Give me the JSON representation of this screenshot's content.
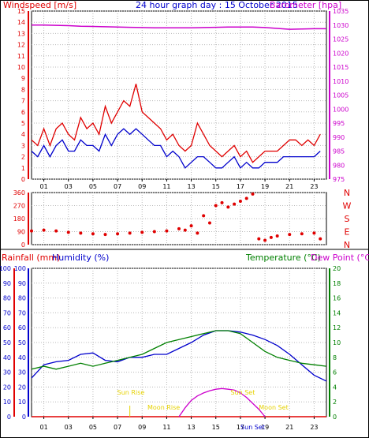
{
  "header": {
    "wind_title": "Windspeed [m/s]",
    "date_title": "24 hour graph day : 15 October 2015",
    "baro_title": "Barometer [hpa]"
  },
  "lower_header": {
    "rain_title": "Rainfall (mm)",
    "hum_title": "Humidity (%)",
    "temp_title": "Temperature (°C)",
    "dew_title": "Dew Point (°C)"
  },
  "colors": {
    "wind_gust": "#e00000",
    "wind_avg": "#0000cc",
    "barometer": "#cc00cc",
    "humidity": "#0000cc",
    "temperature": "#008000",
    "sun": "#e6d200",
    "moon": "#cc00cc",
    "grid": "#b8b8b8",
    "plot_bg": "#ffffff",
    "frame": "#000000"
  },
  "chart_data": [
    {
      "type": "line",
      "series": [
        {
          "values": [
            3.5,
            3,
            4.5,
            3,
            4.5,
            5,
            4,
            3.5,
            5.5,
            4.5,
            5,
            4,
            6.5,
            5,
            6,
            7,
            6.5,
            8.5,
            6,
            5.5,
            5,
            4.5,
            3.5,
            4,
            3,
            2.5,
            3,
            5,
            4,
            3,
            2.5,
            2,
            2.5,
            3,
            2,
            2.5,
            1.5,
            2,
            2.5,
            2.5,
            2.5,
            3,
            3.5,
            3.5,
            3,
            3.5,
            3,
            4
          ]
        },
        {
          "values": [
            2.5,
            2,
            3,
            2,
            3,
            3.5,
            2.5,
            2.5,
            3.5,
            3,
            3,
            2.5,
            4,
            3,
            4,
            4.5,
            4,
            4.5,
            4,
            3.5,
            3,
            3,
            2,
            2.5,
            2,
            1,
            1.5,
            2,
            2,
            1.5,
            1,
            1,
            1.5,
            2,
            1,
            1.5,
            1,
            1,
            1.5,
            1.5,
            1.5,
            2,
            2,
            2,
            2,
            2,
            2,
            2.5
          ]
        }
      ],
      "x": [
        0,
        0.5,
        1,
        1.5,
        2,
        2.5,
        3,
        3.5,
        4,
        4.5,
        5,
        5.5,
        6,
        6.5,
        7,
        7.5,
        8,
        8.5,
        9,
        9.5,
        10,
        10.5,
        11,
        11.5,
        12,
        12.5,
        13,
        13.5,
        14,
        14.5,
        15,
        15.5,
        16,
        16.5,
        17,
        17.5,
        18,
        18.5,
        19,
        19.5,
        20,
        20.5,
        21,
        21.5,
        22,
        22.5,
        23,
        23.5
      ],
      "ylim": [
        0,
        15
      ],
      "y_ticks": [
        0,
        1,
        2,
        3,
        4,
        5,
        6,
        7,
        8,
        9,
        10,
        11,
        12,
        13,
        14,
        15
      ]
    },
    {
      "type": "line",
      "series": [
        {
          "values": [
            1030,
            1030,
            1029.9,
            1029.8,
            1029.6,
            1029.5,
            1029.4,
            1029.3,
            1029.2,
            1029.1,
            1029,
            1029,
            1029,
            1029,
            1029.1,
            1029.2,
            1029.3,
            1029.3,
            1029.3,
            1029.1,
            1028.8,
            1028.5,
            1028.6,
            1028.7,
            1028.7
          ]
        }
      ],
      "x": [
        0,
        1,
        2,
        3,
        4,
        5,
        6,
        7,
        8,
        9,
        10,
        11,
        12,
        13,
        14,
        15,
        16,
        17,
        18,
        19,
        20,
        21,
        22,
        23,
        24
      ],
      "ylim": [
        975,
        1035
      ],
      "y_ticks": [
        975,
        980,
        985,
        990,
        995,
        1000,
        1005,
        1010,
        1015,
        1020,
        1025,
        1030,
        1035
      ]
    },
    {
      "type": "scatter",
      "categories_y": [
        "N",
        "E",
        "S",
        "W",
        "N"
      ],
      "x": [
        0,
        1,
        2,
        3,
        4,
        5,
        6,
        7,
        8,
        9,
        10,
        11,
        12,
        12.5,
        13,
        13.5,
        14,
        14.5,
        15,
        15.5,
        16,
        16.5,
        17,
        17.5,
        18,
        18.5,
        19,
        19.5,
        20,
        21,
        22,
        23,
        23.5
      ],
      "values": [
        95,
        100,
        95,
        85,
        80,
        75,
        70,
        75,
        80,
        85,
        90,
        95,
        110,
        100,
        130,
        80,
        200,
        150,
        270,
        290,
        260,
        280,
        300,
        320,
        350,
        40,
        30,
        50,
        60,
        70,
        75,
        80,
        40
      ],
      "ylim": [
        0,
        360
      ],
      "y_ticks": [
        0,
        90,
        180,
        270,
        360
      ]
    },
    {
      "type": "line",
      "x_ticks": [
        "01",
        "03",
        "05",
        "07",
        "09",
        "11",
        "13",
        "15",
        "17",
        "19",
        "21",
        "23"
      ],
      "series": [
        {
          "values": [
            26,
            35,
            37,
            38,
            42,
            43,
            38,
            37,
            40,
            40,
            42,
            42,
            46,
            50,
            55,
            58,
            58,
            57,
            55,
            52,
            48,
            42,
            35,
            28,
            24
          ]
        },
        {
          "values": [
            32,
            34,
            32,
            34,
            36,
            34,
            36,
            38,
            40,
            42,
            46,
            50,
            52,
            54,
            56,
            58,
            58,
            56,
            50,
            44,
            40,
            38,
            36,
            35,
            34
          ]
        },
        {
          "values": [
            0,
            0,
            0,
            0,
            0,
            0,
            0,
            0,
            0,
            0,
            0,
            0,
            0,
            0,
            0,
            0,
            0,
            0,
            0,
            0,
            0,
            0,
            0,
            0,
            0
          ]
        }
      ],
      "x": [
        0,
        1,
        2,
        3,
        4,
        5,
        6,
        7,
        8,
        9,
        10,
        11,
        12,
        13,
        14,
        15,
        16,
        17,
        18,
        19,
        20,
        21,
        22,
        23,
        24
      ],
      "ylim": [
        0,
        100
      ],
      "y_ticks": [
        0,
        10,
        20,
        30,
        40,
        50,
        60,
        70,
        80,
        90,
        100
      ],
      "y2lim": [
        0,
        20
      ],
      "y2_ticks": [
        0,
        2,
        4,
        6,
        8,
        10,
        12,
        14,
        16,
        18,
        20
      ]
    }
  ],
  "direction_labels": [
    "N",
    "W",
    "S",
    "E",
    "N"
  ],
  "annotations": {
    "sun_rise": "Sun Rise",
    "moon_rise": "Moon Rise",
    "sun_set": "Sun Set",
    "moon_set": "Moon Set",
    "sun_set_axis": "Sun Set"
  },
  "moon_curve": {
    "x": [
      12,
      12.5,
      13,
      13.5,
      14,
      14.5,
      15,
      15.5,
      16,
      16.5,
      17,
      17.5,
      18,
      18.5,
      19
    ],
    "values": [
      0,
      6,
      11,
      14,
      16,
      17.5,
      18.5,
      19,
      18.5,
      18,
      16,
      13,
      9,
      5,
      0
    ]
  },
  "event_hours": {
    "sun_rise": 8,
    "sun_set": 18.7
  }
}
